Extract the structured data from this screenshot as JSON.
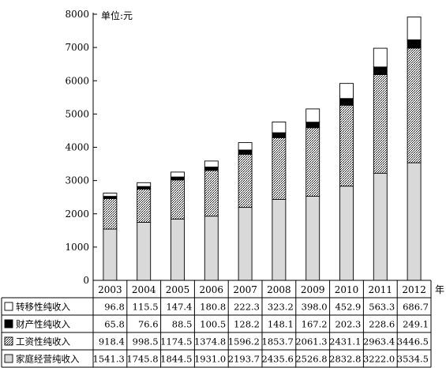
{
  "chart_data": {
    "type": "bar",
    "stacked": true,
    "unit_label": "单位:元",
    "x_suffix": "年",
    "categories": [
      "2003",
      "2004",
      "2005",
      "2006",
      "2007",
      "2008",
      "2009",
      "2010",
      "2011",
      "2012"
    ],
    "ylim": [
      0,
      8000
    ],
    "y_ticks": [
      "0",
      "1000",
      "2000",
      "3000",
      "4000",
      "5000",
      "6000",
      "7000",
      "8000"
    ],
    "series": [
      {
        "name": "家庭经营纯收入",
        "fill": "#d9d9d9",
        "values": [
          1541.3,
          1745.8,
          1844.5,
          1931.0,
          2193.7,
          2435.6,
          2526.8,
          2832.8,
          3222.0,
          3534.5
        ],
        "labels": [
          "1541.3",
          "1745.8",
          "1844.5",
          "1931.0",
          "2193.7",
          "2435.6",
          "2526.8",
          "2832.8",
          "3222.0",
          "3534.5"
        ]
      },
      {
        "name": "工资性纯收入",
        "fill": "pattern",
        "values": [
          918.4,
          998.5,
          1174.5,
          1374.8,
          1596.2,
          1853.7,
          2061.3,
          2431.1,
          2963.4,
          3446.5
        ],
        "labels": [
          "918.4",
          "998.5",
          "1174.5",
          "1374.8",
          "1596.2",
          "1853.7",
          "2061.3",
          "2431.1",
          "2963.4",
          "3446.5"
        ]
      },
      {
        "name": "财产性纯收入",
        "fill": "#000000",
        "values": [
          65.8,
          76.6,
          88.5,
          100.5,
          128.2,
          148.1,
          167.2,
          202.3,
          228.6,
          249.1
        ],
        "labels": [
          "65.8",
          "76.6",
          "88.5",
          "100.5",
          "128.2",
          "148.1",
          "167.2",
          "202.3",
          "228.6",
          "249.1"
        ]
      },
      {
        "name": "转移性纯收入",
        "fill": "#ffffff",
        "values": [
          96.8,
          115.5,
          147.4,
          180.8,
          222.3,
          323.2,
          398.0,
          452.9,
          563.3,
          686.7
        ],
        "labels": [
          "96.8",
          "115.5",
          "147.4",
          "180.8",
          "222.3",
          "323.2",
          "398.0",
          "452.9",
          "563.3",
          "686.7"
        ]
      }
    ],
    "table_row_order": [
      3,
      2,
      1,
      0
    ],
    "grid": false,
    "legend": "data-table-rows"
  }
}
